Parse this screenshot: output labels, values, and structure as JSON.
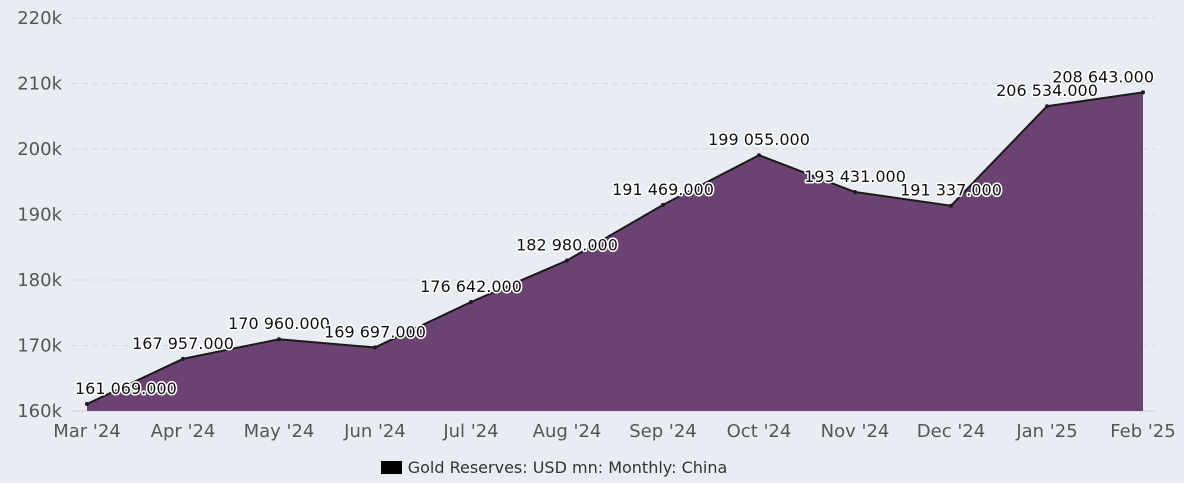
{
  "chart_data": {
    "type": "area",
    "categories": [
      "Mar '24",
      "Apr '24",
      "May '24",
      "Jun '24",
      "Jul '24",
      "Aug '24",
      "Sep '24",
      "Oct '24",
      "Nov '24",
      "Dec '24",
      "Jan '25",
      "Feb '25"
    ],
    "series": [
      {
        "name": "Gold Reserves: USD mn: Monthly: China",
        "values": [
          161069,
          167957,
          170960,
          169697,
          176642,
          182980,
          191469,
          199055,
          193431,
          191337,
          206534,
          208643
        ],
        "data_labels": [
          "161 069.000",
          "167 957.000",
          "170 960.000",
          "169 697.000",
          "176 642.000",
          "182 980.000",
          "191 469.000",
          "199 055.000",
          "193 431.000",
          "191 337.000",
          "206 534.000",
          "208 643.000"
        ]
      }
    ],
    "ylim": [
      160000,
      220000
    ],
    "y_ticks": [
      {
        "value": 160000,
        "label": "160k"
      },
      {
        "value": 170000,
        "label": "170k"
      },
      {
        "value": 180000,
        "label": "180k"
      },
      {
        "value": 190000,
        "label": "190k"
      },
      {
        "value": 200000,
        "label": "200k"
      },
      {
        "value": 210000,
        "label": "210k"
      },
      {
        "value": 220000,
        "label": "220k"
      }
    ],
    "grid": true,
    "legend_position": "bottom-center",
    "colors": {
      "fill": "#6b4372",
      "line": "#1a1a1a",
      "grid": "#d6d9df",
      "legend_swatch": "#000000"
    }
  }
}
